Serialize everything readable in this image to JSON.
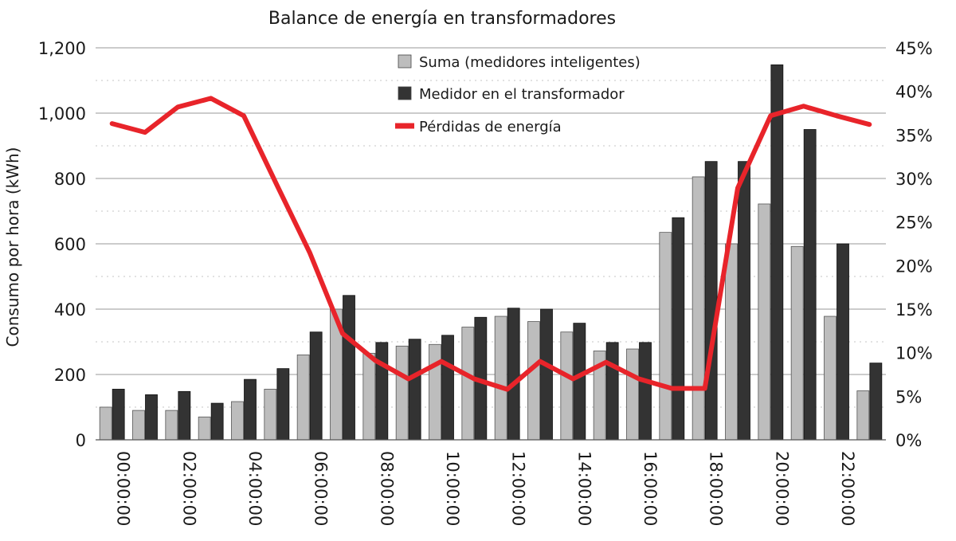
{
  "chart_data": {
    "type": "bar",
    "title": "Balance de energía en transformadores",
    "ylabel": "Consumo por hora (kWh)",
    "xlabel": "",
    "ylim": [
      0,
      1200
    ],
    "y2lim": [
      0,
      45
    ],
    "y_ticks": [
      "0",
      "200",
      "400",
      "600",
      "800",
      "1,000",
      "1,200"
    ],
    "y2_ticks": [
      "0%",
      "5%",
      "10%",
      "15%",
      "20%",
      "25%",
      "30%",
      "35%",
      "40%",
      "45%"
    ],
    "x_tick_labels": [
      "00:00:00",
      "02:00:00",
      "04:00:00",
      "06:00:00",
      "08:00:00",
      "10:00:00",
      "12:00:00",
      "14:00:00",
      "16:00:00",
      "18:00:00",
      "20:00:00",
      "22:00:00"
    ],
    "hours": [
      0,
      1,
      2,
      3,
      4,
      5,
      6,
      7,
      8,
      9,
      10,
      11,
      12,
      13,
      14,
      15,
      16,
      17,
      18,
      19,
      20,
      21,
      22,
      23
    ],
    "legend_position": "top-center",
    "grid": true,
    "series": [
      {
        "name": "Suma (medidores inteligentes)",
        "kind": "bar",
        "axis": "left",
        "color": "#bdbdbd",
        "values": [
          100,
          90,
          90,
          70,
          117,
          155,
          260,
          400,
          265,
          287,
          292,
          345,
          378,
          362,
          330,
          272,
          278,
          635,
          805,
          600,
          722,
          592,
          378,
          150
        ]
      },
      {
        "name": "Medidor en el transformador",
        "kind": "bar",
        "axis": "left",
        "color": "#333333",
        "values": [
          155,
          138,
          148,
          112,
          185,
          218,
          330,
          442,
          298,
          308,
          320,
          375,
          403,
          400,
          357,
          298,
          298,
          680,
          852,
          852,
          1148,
          950,
          600,
          235
        ]
      },
      {
        "name": "Pérdidas de energía",
        "kind": "line",
        "axis": "right",
        "color": "#e8242a",
        "values": [
          36.3,
          35.3,
          38.2,
          39.2,
          37.2,
          29.3,
          21.5,
          12.2,
          9.1,
          7.0,
          9.0,
          7.0,
          5.8,
          9.0,
          7.0,
          8.9,
          7.0,
          5.9,
          5.9,
          28.9,
          37.2,
          38.3,
          37.2,
          36.2
        ]
      }
    ]
  }
}
